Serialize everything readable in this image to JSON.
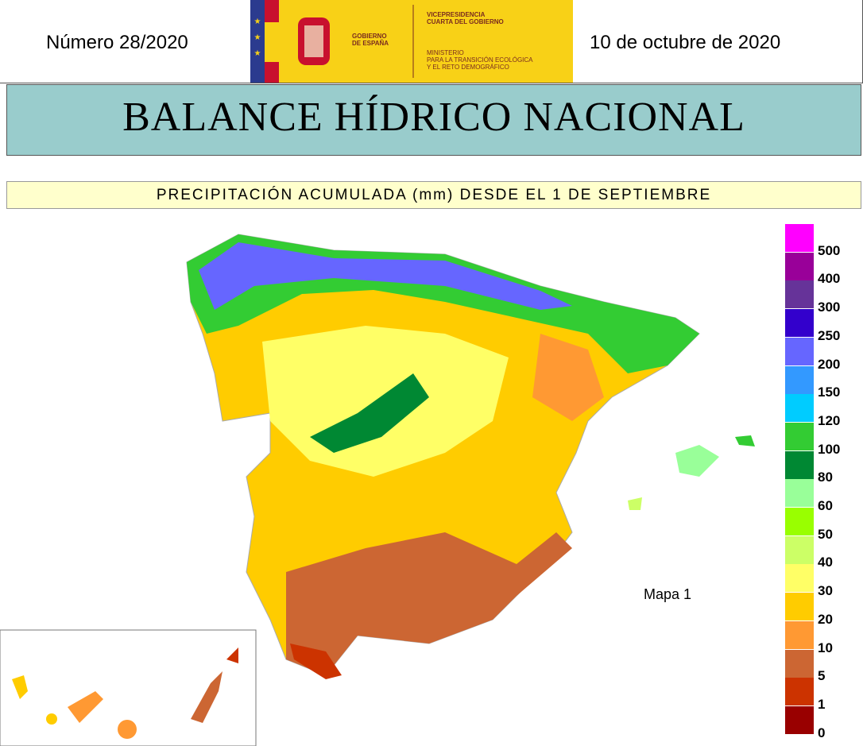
{
  "header": {
    "number": "Número 28/2020",
    "date": "10 de octubre de 2020",
    "logo": {
      "gobierno": [
        "GOBIERNO",
        "DE ESPAÑA"
      ],
      "vicepresidencia": [
        "VICEPRESIDENCIA",
        "CUARTA DEL GOBIERNO"
      ],
      "ministerio": [
        "MINISTERIO",
        "PARA LA TRANSICIÓN ECOLÓGICA",
        "Y EL RETO DEMOGRÁFICO"
      ]
    }
  },
  "title": "BALANCE HÍDRICO NACIONAL",
  "subtitle": "PRECIPITACIÓN ACUMULADA (mm) DESDE EL 1 DE SEPTIEMBRE",
  "map_label": "Mapa 1",
  "legend": [
    {
      "label": "500",
      "color": "#ff00ff"
    },
    {
      "label": "400",
      "color": "#990099"
    },
    {
      "label": "300",
      "color": "#663399"
    },
    {
      "label": "250",
      "color": "#3300cc"
    },
    {
      "label": "200",
      "color": "#6666ff"
    },
    {
      "label": "150",
      "color": "#3399ff"
    },
    {
      "label": "120",
      "color": "#00ccff"
    },
    {
      "label": "100",
      "color": "#33cc33"
    },
    {
      "label": "80",
      "color": "#008833"
    },
    {
      "label": "60",
      "color": "#99ff99"
    },
    {
      "label": "50",
      "color": "#99ff00"
    },
    {
      "label": "40",
      "color": "#ccff66"
    },
    {
      "label": "30",
      "color": "#ffff66"
    },
    {
      "label": "20",
      "color": "#ffcc00"
    },
    {
      "label": "10",
      "color": "#ff9933"
    },
    {
      "label": "5",
      "color": "#cc6633"
    },
    {
      "label": "1",
      "color": "#cc3300"
    },
    {
      "label": "0",
      "color": "#990000"
    }
  ]
}
